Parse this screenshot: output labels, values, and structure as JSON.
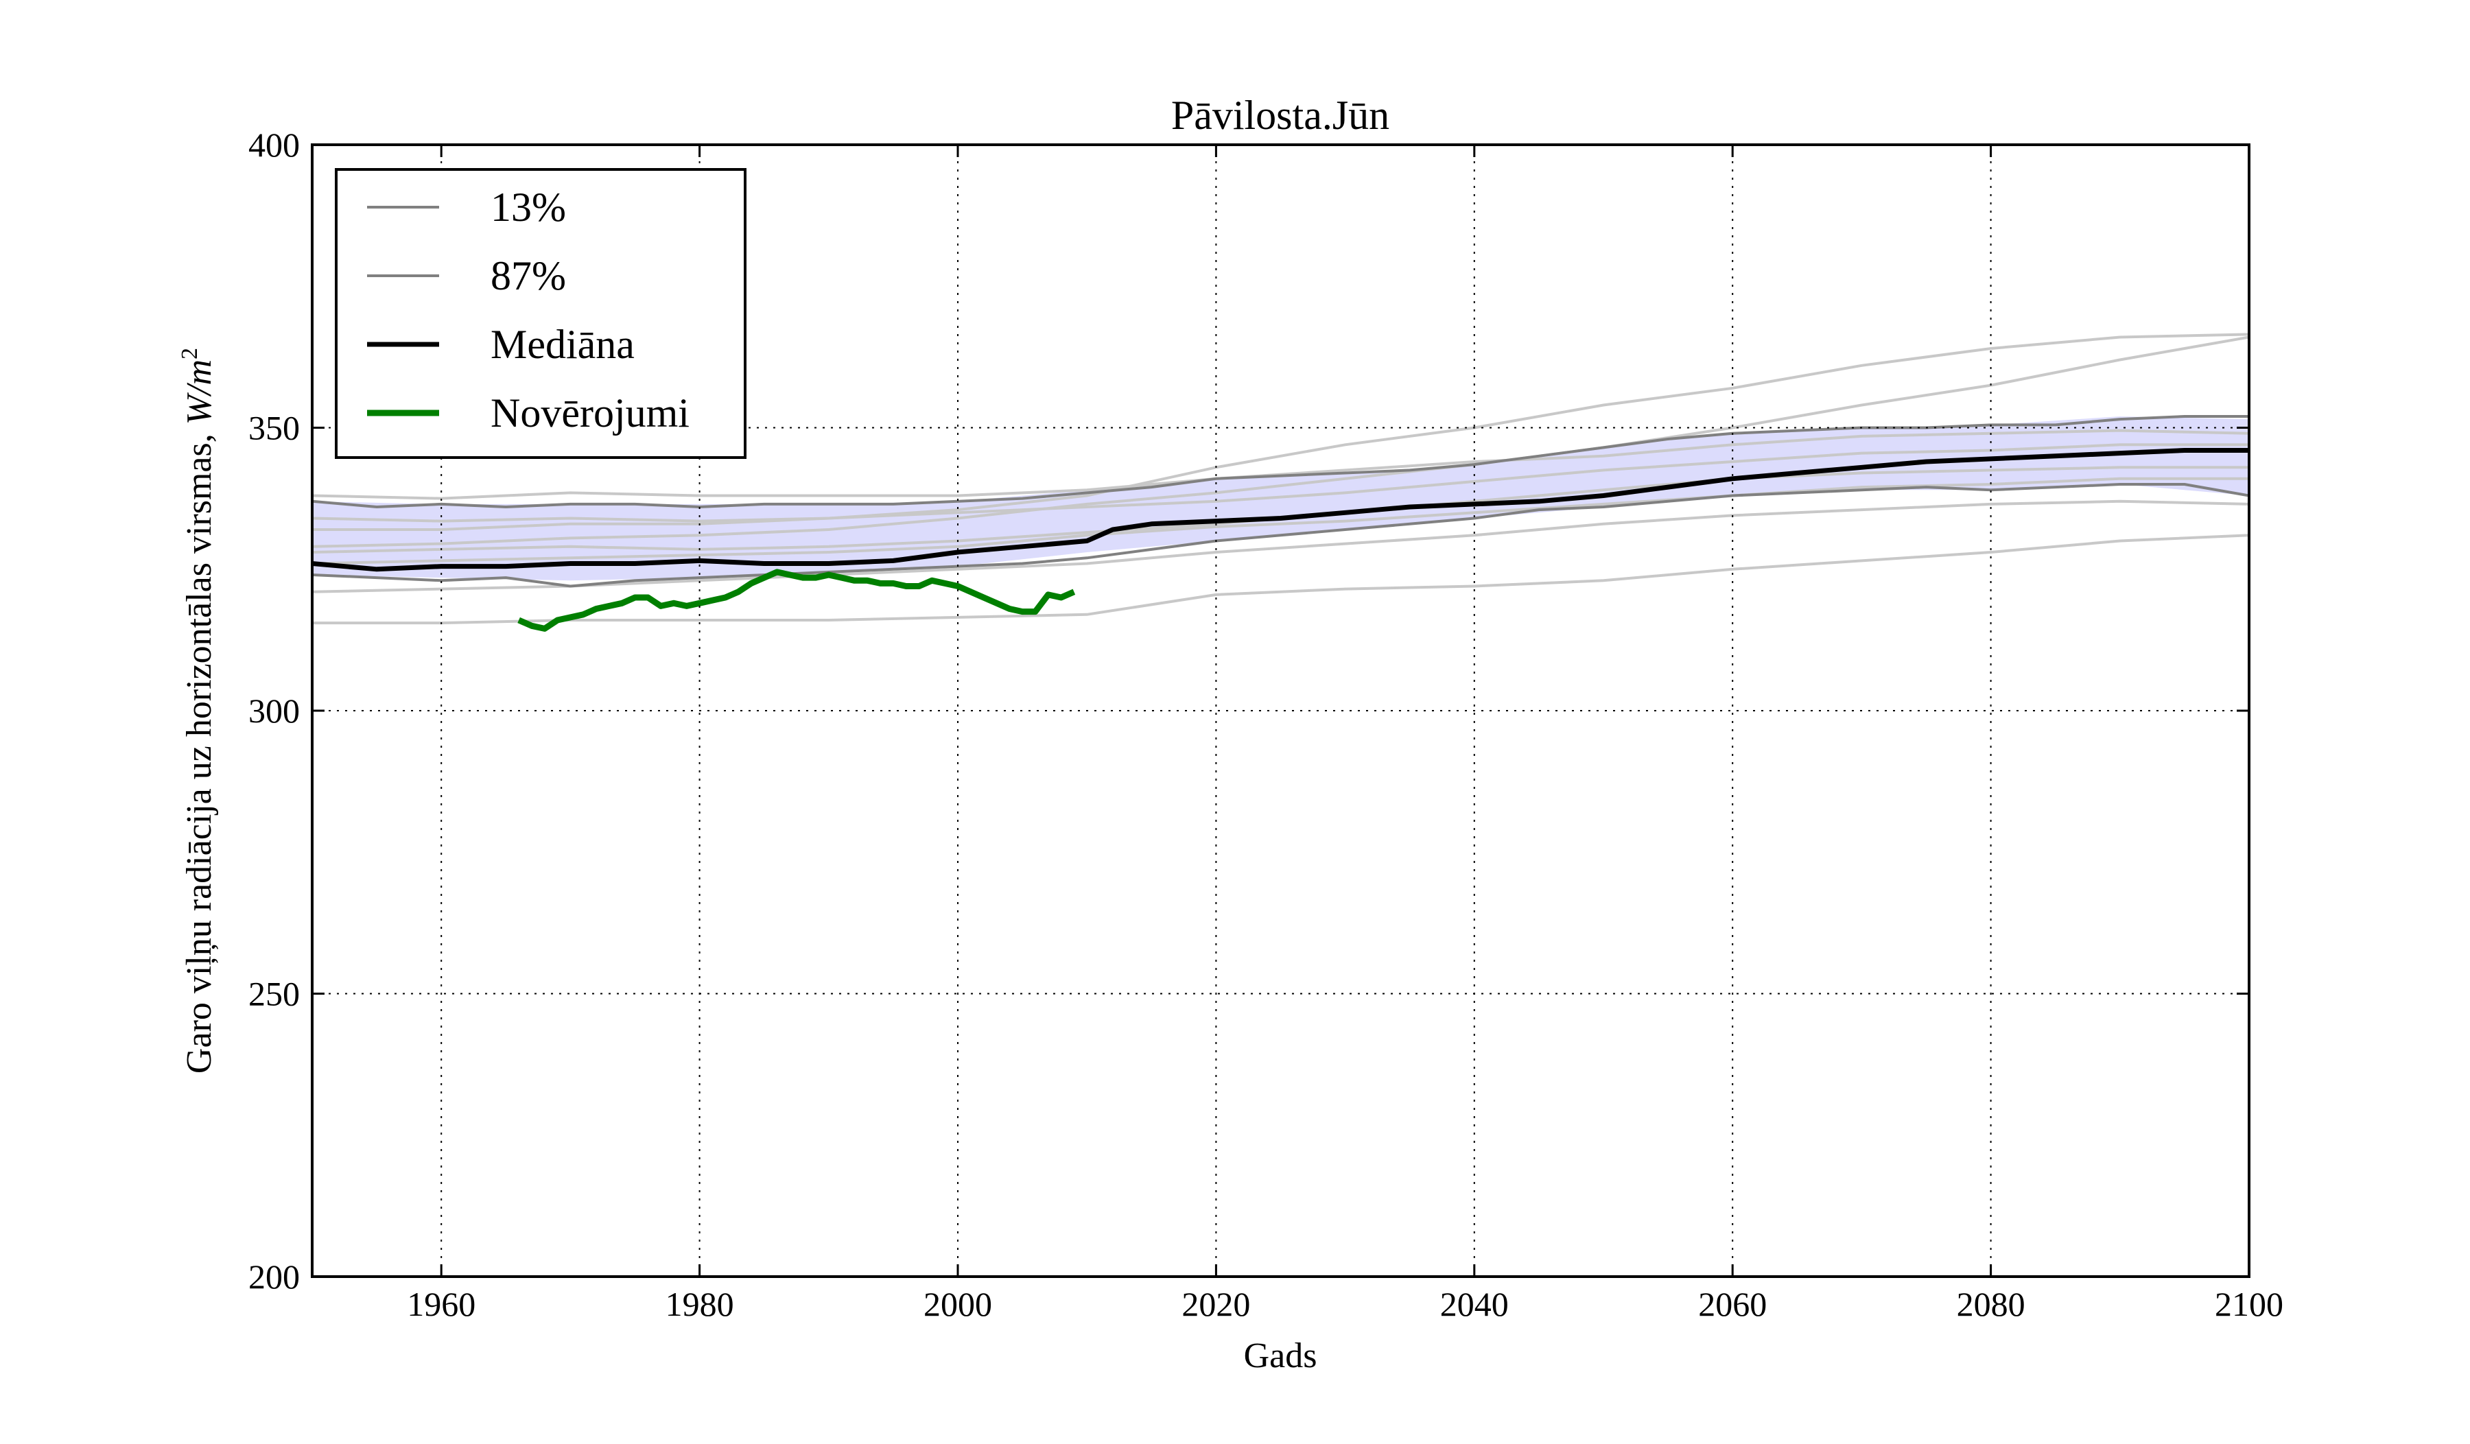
{
  "chart_data": {
    "type": "line",
    "title": "Pāvilosta.Jūn",
    "xlabel": "Gads",
    "ylabel": "Garo viļņu radiācija uz horizontālas virsmas, W/m²",
    "ylabel_text": "Garo viļņu radiācija uz horizontālas virsmas,",
    "ylabel_unit": "W/m",
    "ylabel_exp": "2",
    "xlim": [
      1950,
      2100
    ],
    "ylim": [
      200,
      400
    ],
    "xticks": [
      1960,
      1980,
      2000,
      2020,
      2040,
      2060,
      2080,
      2100
    ],
    "yticks": [
      200,
      250,
      300,
      350,
      400
    ],
    "grid": true,
    "legend_position": "top-left",
    "legend": [
      {
        "label": "13%",
        "series": "p13"
      },
      {
        "label": "87%",
        "series": "p87"
      },
      {
        "label": "Mediāna",
        "series": "median"
      },
      {
        "label": "Novērojumi",
        "series": "obs"
      }
    ],
    "colors": {
      "band_fill": "#dcdcfc",
      "percentile": "#808080",
      "ensemble": "#c8c8c8",
      "median": "#000000",
      "observations": "#007f00"
    },
    "band": {
      "x": [
        1950,
        1960,
        1970,
        1980,
        1990,
        2000,
        2010,
        2020,
        2030,
        2040,
        2050,
        2060,
        2070,
        2080,
        2090,
        2100
      ],
      "lower": [
        324,
        323.5,
        323,
        323.5,
        324.5,
        325.5,
        328,
        330,
        332,
        334,
        336,
        338,
        339,
        339,
        340,
        338
      ],
      "upper": [
        337,
        336.5,
        336.5,
        336.5,
        336.5,
        337,
        339,
        341,
        342,
        343.5,
        346.5,
        349,
        350,
        350.5,
        352,
        351.5
      ]
    },
    "series": [
      {
        "id": "p13",
        "x": [
          1950,
          1955,
          1960,
          1965,
          1970,
          1975,
          1980,
          1985,
          1990,
          1995,
          2000,
          2005,
          2010,
          2015,
          2020,
          2025,
          2030,
          2035,
          2040,
          2045,
          2050,
          2055,
          2060,
          2065,
          2070,
          2075,
          2080,
          2085,
          2090,
          2095,
          2100
        ],
        "values": [
          324,
          323.5,
          323,
          323.5,
          322,
          323,
          323.5,
          324,
          324.5,
          325,
          325.5,
          326,
          327,
          328.5,
          330,
          331,
          332,
          333,
          334,
          335.5,
          336,
          337,
          338,
          338.5,
          339,
          339.5,
          339,
          339.5,
          340,
          340,
          338
        ]
      },
      {
        "id": "p87",
        "x": [
          1950,
          1955,
          1960,
          1965,
          1970,
          1975,
          1980,
          1985,
          1990,
          1995,
          2000,
          2005,
          2010,
          2015,
          2020,
          2025,
          2030,
          2035,
          2040,
          2045,
          2050,
          2055,
          2060,
          2065,
          2070,
          2075,
          2080,
          2085,
          2090,
          2095,
          2100
        ],
        "values": [
          337,
          336,
          336.5,
          336,
          336.5,
          336.5,
          336,
          336.5,
          336.5,
          336.5,
          337,
          337.5,
          338.5,
          339.5,
          341,
          341.5,
          342,
          342.5,
          343.5,
          345,
          346.5,
          348,
          349,
          349.5,
          350,
          350,
          350.5,
          350.5,
          351.5,
          352,
          352
        ]
      },
      {
        "id": "median",
        "x": [
          1950,
          1955,
          1960,
          1965,
          1970,
          1975,
          1980,
          1985,
          1990,
          1995,
          2000,
          2005,
          2010,
          2012,
          2015,
          2020,
          2025,
          2030,
          2035,
          2040,
          2045,
          2050,
          2055,
          2060,
          2065,
          2070,
          2075,
          2080,
          2085,
          2090,
          2095,
          2100
        ],
        "values": [
          326,
          325,
          325.5,
          325.5,
          326,
          326,
          326.5,
          326,
          326,
          326.5,
          328,
          329,
          330,
          332,
          333,
          333.5,
          334,
          335,
          336,
          336.5,
          337,
          338,
          339.5,
          341,
          342,
          343,
          344,
          344.5,
          345,
          345.5,
          346,
          346
        ]
      },
      {
        "id": "obs",
        "x": [
          1966,
          1967,
          1968,
          1969,
          1970,
          1971,
          1972,
          1973,
          1974,
          1975,
          1976,
          1977,
          1978,
          1979,
          1980,
          1981,
          1982,
          1983,
          1984,
          1985,
          1986,
          1987,
          1988,
          1989,
          1990,
          1991,
          1992,
          1993,
          1994,
          1995,
          1996,
          1997,
          1998,
          1999,
          2000,
          2001,
          2002,
          2003,
          2004,
          2005,
          2006,
          2007,
          2008,
          2009
        ],
        "values": [
          316,
          315,
          314.5,
          316,
          316.5,
          317,
          318,
          318.5,
          319,
          320,
          320,
          318.5,
          319,
          318.5,
          319,
          319.5,
          320,
          321,
          322.5,
          323.5,
          324.5,
          324,
          323.5,
          323.5,
          324,
          323.5,
          323,
          323,
          322.5,
          322.5,
          322,
          322,
          323,
          322.5,
          322,
          321,
          320,
          319,
          318,
          317.5,
          317.5,
          320.5,
          320,
          321
        ]
      }
    ],
    "ensemble_members": [
      {
        "x": [
          1950,
          1960,
          1970,
          1980,
          1990,
          2000,
          2010,
          2020,
          2030,
          2040,
          2050,
          2060,
          2070,
          2080,
          2090,
          2100
        ],
        "values": [
          315.5,
          315.5,
          316,
          316,
          316,
          316.5,
          317,
          320.5,
          321.5,
          322,
          323,
          325,
          326.5,
          328,
          330,
          331
        ]
      },
      {
        "x": [
          1950,
          1960,
          1970,
          1980,
          1990,
          2000,
          2010,
          2020,
          2030,
          2040,
          2050,
          2060,
          2070,
          2080,
          2090,
          2100
        ],
        "values": [
          321,
          321.5,
          322,
          323,
          324,
          325,
          326,
          328,
          329.5,
          331,
          333,
          334.5,
          335.5,
          336.5,
          337,
          336.5
        ]
      },
      {
        "x": [
          1950,
          1960,
          1970,
          1980,
          1990,
          2000,
          2010,
          2020,
          2030,
          2040,
          2050,
          2060,
          2070,
          2080,
          2090,
          2100
        ],
        "values": [
          329,
          329.5,
          330.5,
          331,
          332,
          334,
          336.5,
          338.5,
          341,
          343.5,
          346.5,
          350,
          354,
          357.5,
          362,
          366
        ]
      },
      {
        "x": [
          1950,
          1960,
          1970,
          1980,
          1990,
          2000,
          2010,
          2020,
          2030,
          2040,
          2050,
          2060,
          2070,
          2080,
          2090,
          2100
        ],
        "values": [
          332,
          332,
          333,
          333,
          334,
          335.5,
          338,
          343,
          347,
          350,
          354,
          357,
          361,
          364,
          366,
          366.5
        ]
      },
      {
        "x": [
          1950,
          1960,
          1970,
          1980,
          1990,
          2000,
          2010,
          2020,
          2030,
          2040,
          2050,
          2060,
          2070,
          2080,
          2090,
          2100
        ],
        "values": [
          334,
          333.5,
          334,
          333.5,
          334,
          335,
          336,
          337,
          338.5,
          340.5,
          342.5,
          344,
          345.5,
          346,
          347,
          347
        ]
      },
      {
        "x": [
          1950,
          1960,
          1970,
          1980,
          1990,
          2000,
          2010,
          2020,
          2030,
          2040,
          2050,
          2060,
          2070,
          2080,
          2090,
          2100
        ],
        "values": [
          328,
          328.5,
          329,
          328.5,
          329,
          330,
          331.5,
          333,
          335,
          337,
          339,
          341,
          342,
          342.5,
          343,
          343
        ]
      },
      {
        "x": [
          1950,
          1960,
          1970,
          1980,
          1990,
          2000,
          2010,
          2020,
          2030,
          2040,
          2050,
          2060,
          2070,
          2080,
          2090,
          2100
        ],
        "values": [
          326,
          326.5,
          327,
          327.5,
          328,
          329,
          331,
          332.5,
          333.5,
          335,
          336.5,
          338,
          339.5,
          340,
          341,
          341
        ]
      },
      {
        "x": [
          1950,
          1960,
          1970,
          1980,
          1990,
          2000,
          2010,
          2020,
          2030,
          2040,
          2050,
          2060,
          2070,
          2080,
          2090,
          2100
        ],
        "values": [
          338,
          337.5,
          338.5,
          338,
          338,
          338,
          339,
          341,
          342.5,
          344,
          345,
          347,
          348.5,
          349,
          349.5,
          349
        ]
      }
    ]
  }
}
